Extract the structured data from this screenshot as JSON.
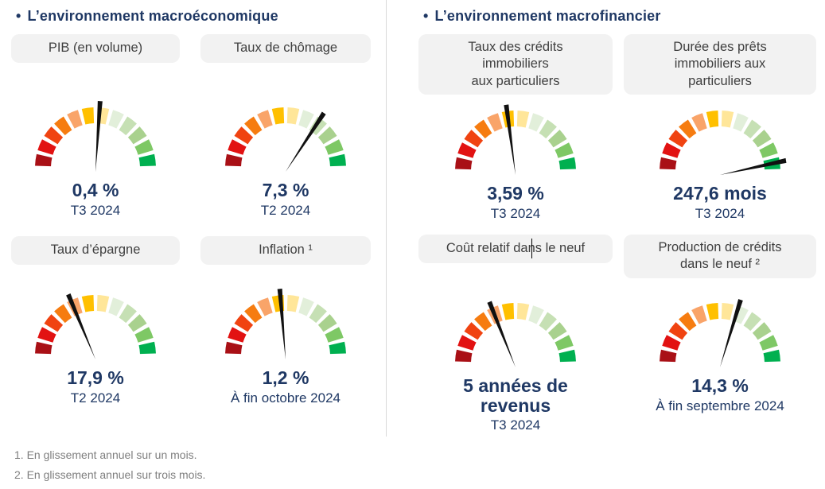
{
  "page": {
    "bullet_char": "•"
  },
  "sections": [
    {
      "title": "L’environnement macroéconomique"
    },
    {
      "title": "L’environnement macrofinancier"
    }
  ],
  "gauge_style": {
    "segment_colors": [
      "#A91016",
      "#E21212",
      "#F04311",
      "#F67C10",
      "#F9A469",
      "#FFC000",
      "#FFE699",
      "#E2EFDA",
      "#C6E0B4",
      "#A9D18E",
      "#7EC865",
      "#00B050"
    ],
    "needle_color": "#111111"
  },
  "chart_data": [
    {
      "type": "gauge",
      "section": "L’environnement macroéconomique",
      "label": "PIB (en volume)",
      "value": "0,4 %",
      "caption": "T3 2024",
      "needle_angle_deg": 4,
      "scale_note": "échelle qualitative rouge (défavorable) → vert (favorable), 12 segments"
    },
    {
      "type": "gauge",
      "section": "L’environnement macroéconomique",
      "label": "Taux de chômage",
      "value": "7,3 %",
      "caption": "T2 2024",
      "needle_angle_deg": 35,
      "scale_note": "échelle qualitative rouge → vert, 12 segments"
    },
    {
      "type": "gauge",
      "section": "L’environnement macroéconomique",
      "label": "Taux d’épargne",
      "value": "17,9 %",
      "caption": "T2 2024",
      "needle_angle_deg": -24,
      "scale_note": "échelle qualitative rouge → vert, 12 segments"
    },
    {
      "type": "gauge",
      "section": "L’environnement macroéconomique",
      "label": "Inflation ¹",
      "value": "1,2 %",
      "caption": "À fin octobre 2024",
      "needle_angle_deg": -5,
      "scale_note": "échelle qualitative rouge → vert, 12 segments"
    },
    {
      "type": "gauge",
      "section": "L’environnement macrofinancier",
      "label": "Taux des crédits\nimmobiliers\naux particuliers",
      "value": "3,59 %",
      "caption": "T3 2024",
      "needle_angle_deg": -8,
      "scale_note": "échelle qualitative rouge → vert, 12 segments"
    },
    {
      "type": "gauge",
      "section": "L’environnement macrofinancier",
      "label": "Durée des prêts\nimmobiliers aux\nparticuliers",
      "value": "247,6 mois",
      "caption": "T3 2024",
      "needle_angle_deg": 81,
      "scale_note": "échelle qualitative rouge → vert, 12 segments"
    },
    {
      "type": "gauge",
      "section": "L’environnement macrofinancier",
      "label": "Coût relatif dans le neuf",
      "value": "5 années de\nrevenus",
      "caption": "T3 2024",
      "needle_angle_deg": -23,
      "scale_note": "échelle qualitative rouge → vert, 12 segments"
    },
    {
      "type": "gauge",
      "section": "L’environnement macrofinancier",
      "label": "Production de crédits\ndans le neuf ²",
      "value": "14,3 %",
      "caption": "À fin septembre 2024",
      "needle_angle_deg": 18,
      "scale_note": "échelle qualitative rouge → vert, 12 segments"
    }
  ],
  "footnotes": [
    "1. En glissement annuel sur un mois.",
    "2. En glissement annuel sur trois mois."
  ]
}
